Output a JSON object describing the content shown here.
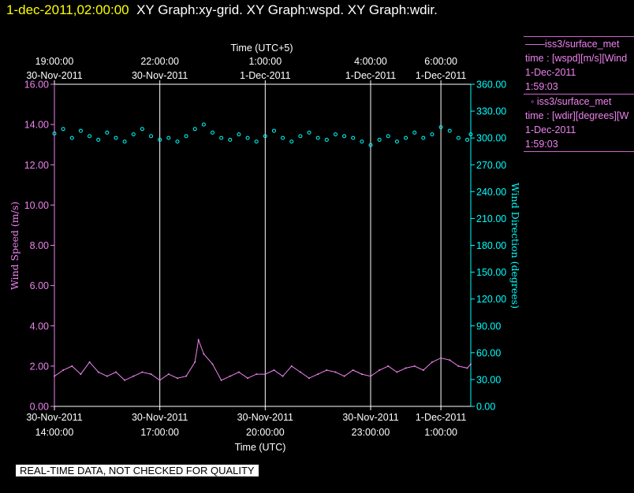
{
  "header": {
    "timestamp": "1-dec-2011,02:00:00",
    "graph_names": "XY Graph:xy-grid.  XY Graph:wspd.  XY Graph:wdir."
  },
  "legend": {
    "wspd": {
      "series_line": "iss3/surface_met",
      "detail": "time : [wspd][m/s][Wind",
      "date": "1-Dec-2011",
      "time": "1:59:03"
    },
    "wdir": {
      "series_line": "iss3/surface_met",
      "detail": "time : [wdir][degrees][W",
      "date": "1-Dec-2011",
      "time": "1:59:03"
    }
  },
  "disclaimer": "REAL-TIME DATA, NOT CHECKED FOR QUALITY",
  "colors": {
    "wspd": "#ee82ee",
    "wdir": "#00ffff",
    "grid": "#ffffff",
    "timestamp": "#ffff00",
    "background": "#000000"
  },
  "chart_data": {
    "type": "line",
    "x_start": "30-Nov-2011 14:00 UTC",
    "x_end": "1-Dec-2011 01:50 UTC",
    "xlim_hours_utc": [
      14.0,
      25.85
    ],
    "x_unit": "hours UTC counted from 30-Nov-2011 00:00",
    "xlabel_bottom": "Time (UTC)",
    "xlabel_top": "Time (UTC+5)",
    "x_ticks_bottom": [
      {
        "hour": 14,
        "date": "30-Nov-2011",
        "time": "14:00:00"
      },
      {
        "hour": 17,
        "date": "30-Nov-2011",
        "time": "17:00:00"
      },
      {
        "hour": 20,
        "date": "30-Nov-2011",
        "time": "20:00:00"
      },
      {
        "hour": 23,
        "date": "30-Nov-2011",
        "time": "23:00:00"
      },
      {
        "hour": 25,
        "date": "1-Dec-2011",
        "time": "1:00:00"
      }
    ],
    "x_ticks_top": [
      {
        "hour": 14,
        "time": "19:00:00",
        "date": "30-Nov-2011"
      },
      {
        "hour": 17,
        "time": "22:00:00",
        "date": "30-Nov-2011"
      },
      {
        "hour": 20,
        "time": "1:00:00",
        "date": "1-Dec-2011"
      },
      {
        "hour": 23,
        "time": "4:00:00",
        "date": "1-Dec-2011"
      },
      {
        "hour": 25,
        "time": "6:00:00",
        "date": "1-Dec-2011"
      }
    ],
    "gridlines_hours_utc": [
      17,
      20,
      23,
      25
    ],
    "y_left": {
      "label": "Wind Speed (m/s)",
      "range": [
        0,
        16
      ],
      "ticks": [
        "0.00",
        "2.00",
        "4.00",
        "6.00",
        "8.00",
        "10.00",
        "12.00",
        "14.00",
        "16.00"
      ]
    },
    "y_right": {
      "label": "Wind Direction (degrees)",
      "range": [
        0,
        360
      ],
      "ticks": [
        "0.00",
        "30.00",
        "60.00",
        "90.00",
        "120.00",
        "150.00",
        "180.00",
        "210.00",
        "240.00",
        "270.00",
        "300.00",
        "330.00",
        "360.00"
      ]
    },
    "grid": true,
    "legend_placement": "right",
    "series": [
      {
        "name": "iss3/surface_met",
        "variable": "wspd",
        "style": "line",
        "axis": "left",
        "x": [
          14.0,
          14.25,
          14.5,
          14.75,
          15.0,
          15.25,
          15.5,
          15.75,
          16.0,
          16.25,
          16.5,
          16.75,
          17.0,
          17.25,
          17.5,
          17.75,
          18.0,
          18.1,
          18.25,
          18.5,
          18.75,
          19.0,
          19.25,
          19.5,
          19.75,
          20.0,
          20.25,
          20.5,
          20.75,
          21.0,
          21.25,
          21.5,
          21.75,
          22.0,
          22.25,
          22.5,
          22.75,
          23.0,
          23.25,
          23.5,
          23.75,
          24.0,
          24.25,
          24.5,
          24.75,
          25.0,
          25.25,
          25.5,
          25.75,
          25.85
        ],
        "y": [
          1.5,
          1.8,
          2.0,
          1.6,
          2.2,
          1.7,
          1.5,
          1.7,
          1.3,
          1.5,
          1.7,
          1.6,
          1.3,
          1.6,
          1.4,
          1.5,
          2.2,
          3.3,
          2.6,
          2.1,
          1.3,
          1.5,
          1.7,
          1.4,
          1.6,
          1.6,
          1.8,
          1.5,
          2.0,
          1.7,
          1.4,
          1.6,
          1.8,
          1.7,
          1.5,
          1.8,
          1.6,
          1.5,
          1.8,
          2.0,
          1.7,
          1.9,
          2.0,
          1.8,
          2.2,
          2.4,
          2.3,
          2.0,
          1.9,
          2.1
        ]
      },
      {
        "name": "iss3/surface_met",
        "variable": "wdir",
        "style": "scatter",
        "axis": "right",
        "x": [
          14.0,
          14.25,
          14.5,
          14.75,
          15.0,
          15.25,
          15.5,
          15.75,
          16.0,
          16.25,
          16.5,
          16.75,
          17.0,
          17.25,
          17.5,
          17.75,
          18.0,
          18.25,
          18.5,
          18.75,
          19.0,
          19.25,
          19.5,
          19.75,
          20.0,
          20.25,
          20.5,
          20.75,
          21.0,
          21.25,
          21.5,
          21.75,
          22.0,
          22.25,
          22.5,
          22.75,
          23.0,
          23.25,
          23.5,
          23.75,
          24.0,
          24.25,
          24.5,
          24.75,
          25.0,
          25.25,
          25.5,
          25.75,
          25.85
        ],
        "y": [
          305,
          310,
          300,
          308,
          302,
          298,
          306,
          300,
          296,
          304,
          310,
          302,
          298,
          300,
          296,
          302,
          310,
          315,
          306,
          300,
          298,
          304,
          300,
          296,
          302,
          308,
          300,
          296,
          302,
          306,
          300,
          298,
          304,
          302,
          300,
          296,
          292,
          298,
          302,
          296,
          300,
          306,
          300,
          304,
          312,
          308,
          300,
          298,
          304
        ]
      }
    ]
  }
}
